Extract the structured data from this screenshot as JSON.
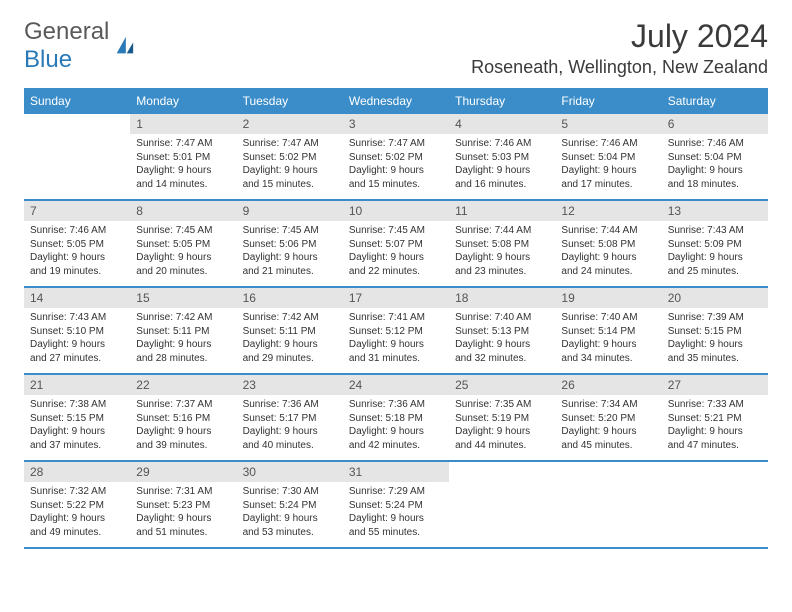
{
  "brand": {
    "word1": "General",
    "word2": "Blue"
  },
  "title": "July 2024",
  "location": "Roseneath, Wellington, New Zealand",
  "colors": {
    "header_bg": "#3a8dc9",
    "header_text": "#ffffff",
    "daynum_bg": "#e5e5e5",
    "row_border": "#3a8dc9",
    "brand_blue": "#2a7ab8",
    "text": "#333333"
  },
  "weekdays": [
    "Sunday",
    "Monday",
    "Tuesday",
    "Wednesday",
    "Thursday",
    "Friday",
    "Saturday"
  ],
  "weeks": [
    [
      null,
      {
        "n": "1",
        "sr": "Sunrise: 7:47 AM",
        "ss": "Sunset: 5:01 PM",
        "d1": "Daylight: 9 hours",
        "d2": "and 14 minutes."
      },
      {
        "n": "2",
        "sr": "Sunrise: 7:47 AM",
        "ss": "Sunset: 5:02 PM",
        "d1": "Daylight: 9 hours",
        "d2": "and 15 minutes."
      },
      {
        "n": "3",
        "sr": "Sunrise: 7:47 AM",
        "ss": "Sunset: 5:02 PM",
        "d1": "Daylight: 9 hours",
        "d2": "and 15 minutes."
      },
      {
        "n": "4",
        "sr": "Sunrise: 7:46 AM",
        "ss": "Sunset: 5:03 PM",
        "d1": "Daylight: 9 hours",
        "d2": "and 16 minutes."
      },
      {
        "n": "5",
        "sr": "Sunrise: 7:46 AM",
        "ss": "Sunset: 5:04 PM",
        "d1": "Daylight: 9 hours",
        "d2": "and 17 minutes."
      },
      {
        "n": "6",
        "sr": "Sunrise: 7:46 AM",
        "ss": "Sunset: 5:04 PM",
        "d1": "Daylight: 9 hours",
        "d2": "and 18 minutes."
      }
    ],
    [
      {
        "n": "7",
        "sr": "Sunrise: 7:46 AM",
        "ss": "Sunset: 5:05 PM",
        "d1": "Daylight: 9 hours",
        "d2": "and 19 minutes."
      },
      {
        "n": "8",
        "sr": "Sunrise: 7:45 AM",
        "ss": "Sunset: 5:05 PM",
        "d1": "Daylight: 9 hours",
        "d2": "and 20 minutes."
      },
      {
        "n": "9",
        "sr": "Sunrise: 7:45 AM",
        "ss": "Sunset: 5:06 PM",
        "d1": "Daylight: 9 hours",
        "d2": "and 21 minutes."
      },
      {
        "n": "10",
        "sr": "Sunrise: 7:45 AM",
        "ss": "Sunset: 5:07 PM",
        "d1": "Daylight: 9 hours",
        "d2": "and 22 minutes."
      },
      {
        "n": "11",
        "sr": "Sunrise: 7:44 AM",
        "ss": "Sunset: 5:08 PM",
        "d1": "Daylight: 9 hours",
        "d2": "and 23 minutes."
      },
      {
        "n": "12",
        "sr": "Sunrise: 7:44 AM",
        "ss": "Sunset: 5:08 PM",
        "d1": "Daylight: 9 hours",
        "d2": "and 24 minutes."
      },
      {
        "n": "13",
        "sr": "Sunrise: 7:43 AM",
        "ss": "Sunset: 5:09 PM",
        "d1": "Daylight: 9 hours",
        "d2": "and 25 minutes."
      }
    ],
    [
      {
        "n": "14",
        "sr": "Sunrise: 7:43 AM",
        "ss": "Sunset: 5:10 PM",
        "d1": "Daylight: 9 hours",
        "d2": "and 27 minutes."
      },
      {
        "n": "15",
        "sr": "Sunrise: 7:42 AM",
        "ss": "Sunset: 5:11 PM",
        "d1": "Daylight: 9 hours",
        "d2": "and 28 minutes."
      },
      {
        "n": "16",
        "sr": "Sunrise: 7:42 AM",
        "ss": "Sunset: 5:11 PM",
        "d1": "Daylight: 9 hours",
        "d2": "and 29 minutes."
      },
      {
        "n": "17",
        "sr": "Sunrise: 7:41 AM",
        "ss": "Sunset: 5:12 PM",
        "d1": "Daylight: 9 hours",
        "d2": "and 31 minutes."
      },
      {
        "n": "18",
        "sr": "Sunrise: 7:40 AM",
        "ss": "Sunset: 5:13 PM",
        "d1": "Daylight: 9 hours",
        "d2": "and 32 minutes."
      },
      {
        "n": "19",
        "sr": "Sunrise: 7:40 AM",
        "ss": "Sunset: 5:14 PM",
        "d1": "Daylight: 9 hours",
        "d2": "and 34 minutes."
      },
      {
        "n": "20",
        "sr": "Sunrise: 7:39 AM",
        "ss": "Sunset: 5:15 PM",
        "d1": "Daylight: 9 hours",
        "d2": "and 35 minutes."
      }
    ],
    [
      {
        "n": "21",
        "sr": "Sunrise: 7:38 AM",
        "ss": "Sunset: 5:15 PM",
        "d1": "Daylight: 9 hours",
        "d2": "and 37 minutes."
      },
      {
        "n": "22",
        "sr": "Sunrise: 7:37 AM",
        "ss": "Sunset: 5:16 PM",
        "d1": "Daylight: 9 hours",
        "d2": "and 39 minutes."
      },
      {
        "n": "23",
        "sr": "Sunrise: 7:36 AM",
        "ss": "Sunset: 5:17 PM",
        "d1": "Daylight: 9 hours",
        "d2": "and 40 minutes."
      },
      {
        "n": "24",
        "sr": "Sunrise: 7:36 AM",
        "ss": "Sunset: 5:18 PM",
        "d1": "Daylight: 9 hours",
        "d2": "and 42 minutes."
      },
      {
        "n": "25",
        "sr": "Sunrise: 7:35 AM",
        "ss": "Sunset: 5:19 PM",
        "d1": "Daylight: 9 hours",
        "d2": "and 44 minutes."
      },
      {
        "n": "26",
        "sr": "Sunrise: 7:34 AM",
        "ss": "Sunset: 5:20 PM",
        "d1": "Daylight: 9 hours",
        "d2": "and 45 minutes."
      },
      {
        "n": "27",
        "sr": "Sunrise: 7:33 AM",
        "ss": "Sunset: 5:21 PM",
        "d1": "Daylight: 9 hours",
        "d2": "and 47 minutes."
      }
    ],
    [
      {
        "n": "28",
        "sr": "Sunrise: 7:32 AM",
        "ss": "Sunset: 5:22 PM",
        "d1": "Daylight: 9 hours",
        "d2": "and 49 minutes."
      },
      {
        "n": "29",
        "sr": "Sunrise: 7:31 AM",
        "ss": "Sunset: 5:23 PM",
        "d1": "Daylight: 9 hours",
        "d2": "and 51 minutes."
      },
      {
        "n": "30",
        "sr": "Sunrise: 7:30 AM",
        "ss": "Sunset: 5:24 PM",
        "d1": "Daylight: 9 hours",
        "d2": "and 53 minutes."
      },
      {
        "n": "31",
        "sr": "Sunrise: 7:29 AM",
        "ss": "Sunset: 5:24 PM",
        "d1": "Daylight: 9 hours",
        "d2": "and 55 minutes."
      },
      null,
      null,
      null
    ]
  ]
}
